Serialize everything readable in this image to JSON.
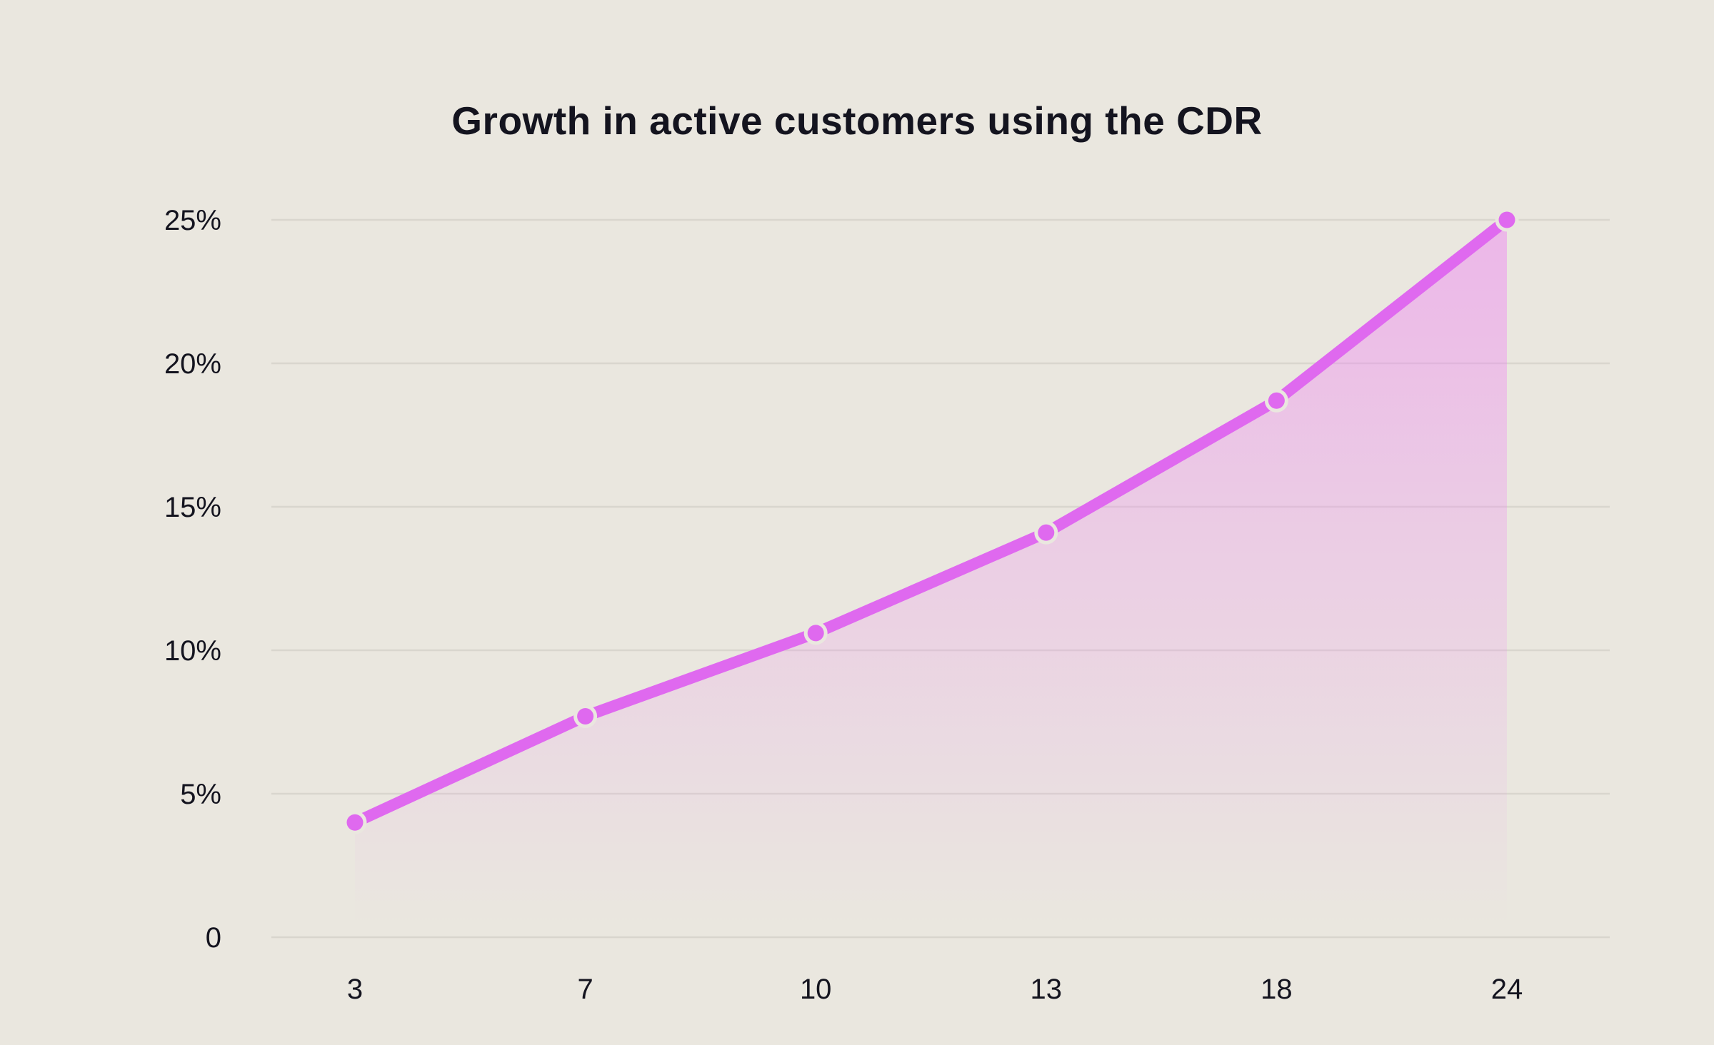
{
  "chart_data": {
    "type": "line",
    "title": "Growth in active customers using the CDR",
    "categories": [
      "3",
      "7",
      "10",
      "13",
      "18",
      "24"
    ],
    "values": [
      4,
      7.7,
      10.6,
      14.1,
      18.7,
      25
    ],
    "unit": "%",
    "yticks": [
      {
        "label": "25%",
        "value": 25
      },
      {
        "label": "20%",
        "value": 20
      },
      {
        "label": "15%",
        "value": 15
      },
      {
        "label": "10%",
        "value": 10
      },
      {
        "label": "5%",
        "value": 5
      },
      {
        "label": "0",
        "value": 0
      }
    ],
    "ylim": [
      0,
      25
    ],
    "xlabel": "",
    "ylabel": "",
    "grid": "horizontal-only",
    "legend": "none",
    "marker_style": "dot-with-background-halo",
    "area_fill": "vertical-gradient-fade",
    "colors": {
      "background": "#EAE7DF",
      "line": "#DF69EF",
      "marker": "#DF69EF",
      "marker_halo": "#EAE7DF",
      "gridline": "#D9D6CE",
      "text": "#14141F",
      "area_top": "rgba(238,130,243,0.48)",
      "area_bottom": "rgba(238,130,243,0)"
    }
  }
}
